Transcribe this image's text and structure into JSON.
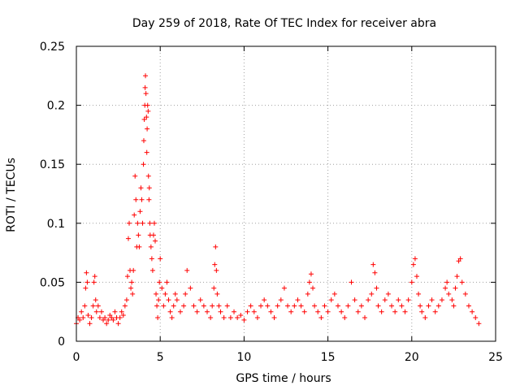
{
  "chart_data": {
    "type": "scatter",
    "title": "Day 259 of 2018, Rate Of TEC Index for receiver abra",
    "xlabel": "GPS time / hours",
    "ylabel": "ROTI / TECUs",
    "xlim": [
      0,
      25
    ],
    "ylim": [
      0,
      0.25
    ],
    "x_ticks": [
      "0",
      "5",
      "10",
      "15",
      "20",
      "25"
    ],
    "y_ticks": [
      "0",
      "0.05",
      "0.1",
      "0.15",
      "0.2",
      "0.25"
    ],
    "grid": true,
    "marker": "plus",
    "color": "#ff0000",
    "series": [
      {
        "x": [
          0.0,
          0.1,
          0.2,
          0.3,
          0.4,
          0.5,
          0.55,
          0.6,
          0.65,
          0.7,
          0.8,
          0.9,
          1.0,
          1.05,
          1.1,
          1.15,
          1.2,
          1.3,
          1.4,
          1.5,
          1.6,
          1.7,
          1.8,
          1.9,
          2.0,
          2.1,
          2.2,
          2.3,
          2.4,
          2.5,
          2.6,
          2.7,
          2.8,
          2.9,
          3.0,
          3.05,
          3.1,
          3.15,
          3.2,
          3.25,
          3.3,
          3.35,
          3.4,
          3.45,
          3.5,
          3.55,
          3.6,
          3.65,
          3.7,
          3.75,
          3.8,
          3.85,
          3.9,
          3.95,
          4.0,
          4.02,
          4.05,
          4.08,
          4.1,
          4.12,
          4.15,
          4.18,
          4.2,
          4.22,
          4.25,
          4.28,
          4.3,
          4.33,
          4.35,
          4.38,
          4.4,
          4.45,
          4.5,
          4.55,
          4.6,
          4.65,
          4.7,
          4.75,
          4.8,
          4.85,
          4.9,
          4.95,
          5.0,
          5.1,
          5.2,
          5.3,
          5.4,
          5.5,
          5.6,
          5.7,
          5.8,
          5.9,
          6.0,
          6.2,
          6.4,
          6.5,
          6.6,
          6.8,
          7.0,
          7.2,
          7.4,
          7.6,
          7.8,
          8.0,
          8.1,
          8.2,
          8.25,
          8.3,
          8.35,
          8.4,
          8.5,
          8.6,
          8.8,
          9.0,
          9.2,
          9.4,
          9.6,
          9.8,
          10.0,
          10.2,
          10.4,
          10.6,
          10.8,
          11.0,
          11.2,
          11.4,
          11.6,
          11.8,
          12.0,
          12.2,
          12.4,
          12.6,
          12.8,
          13.0,
          13.2,
          13.4,
          13.6,
          13.8,
          13.9,
          14.0,
          14.1,
          14.2,
          14.4,
          14.6,
          14.8,
          15.0,
          15.2,
          15.4,
          15.6,
          15.8,
          16.0,
          16.2,
          16.4,
          16.6,
          16.8,
          17.0,
          17.2,
          17.4,
          17.6,
          17.7,
          17.8,
          17.9,
          18.0,
          18.2,
          18.4,
          18.6,
          18.8,
          19.0,
          19.2,
          19.4,
          19.6,
          19.8,
          20.0,
          20.1,
          20.2,
          20.3,
          20.4,
          20.5,
          20.6,
          20.8,
          21.0,
          21.2,
          21.4,
          21.6,
          21.8,
          22.0,
          22.1,
          22.2,
          22.4,
          22.5,
          22.6,
          22.7,
          22.8,
          22.9,
          23.0,
          23.2,
          23.4,
          23.6,
          23.8,
          24.0
        ],
        "y": [
          0.015,
          0.02,
          0.018,
          0.025,
          0.02,
          0.03,
          0.045,
          0.058,
          0.05,
          0.022,
          0.015,
          0.02,
          0.03,
          0.05,
          0.055,
          0.035,
          0.025,
          0.03,
          0.02,
          0.025,
          0.018,
          0.02,
          0.015,
          0.018,
          0.022,
          0.02,
          0.018,
          0.025,
          0.02,
          0.015,
          0.02,
          0.025,
          0.022,
          0.03,
          0.035,
          0.055,
          0.087,
          0.1,
          0.06,
          0.045,
          0.05,
          0.04,
          0.06,
          0.107,
          0.14,
          0.12,
          0.08,
          0.1,
          0.09,
          0.08,
          0.11,
          0.13,
          0.12,
          0.1,
          0.15,
          0.17,
          0.188,
          0.2,
          0.215,
          0.225,
          0.21,
          0.19,
          0.16,
          0.18,
          0.2,
          0.195,
          0.14,
          0.12,
          0.13,
          0.1,
          0.09,
          0.08,
          0.07,
          0.06,
          0.09,
          0.1,
          0.085,
          0.04,
          0.03,
          0.02,
          0.035,
          0.05,
          0.07,
          0.045,
          0.03,
          0.04,
          0.05,
          0.035,
          0.025,
          0.02,
          0.03,
          0.04,
          0.035,
          0.025,
          0.03,
          0.04,
          0.06,
          0.045,
          0.03,
          0.025,
          0.035,
          0.03,
          0.025,
          0.02,
          0.03,
          0.045,
          0.065,
          0.08,
          0.06,
          0.04,
          0.03,
          0.025,
          0.02,
          0.03,
          0.02,
          0.025,
          0.02,
          0.022,
          0.018,
          0.025,
          0.03,
          0.025,
          0.02,
          0.03,
          0.035,
          0.03,
          0.025,
          0.02,
          0.03,
          0.035,
          0.045,
          0.03,
          0.025,
          0.03,
          0.035,
          0.03,
          0.025,
          0.04,
          0.05,
          0.057,
          0.045,
          0.03,
          0.025,
          0.02,
          0.03,
          0.025,
          0.035,
          0.04,
          0.03,
          0.025,
          0.02,
          0.03,
          0.05,
          0.035,
          0.025,
          0.03,
          0.02,
          0.035,
          0.04,
          0.065,
          0.058,
          0.045,
          0.03,
          0.025,
          0.035,
          0.04,
          0.03,
          0.025,
          0.035,
          0.03,
          0.025,
          0.035,
          0.05,
          0.065,
          0.07,
          0.055,
          0.04,
          0.03,
          0.025,
          0.02,
          0.03,
          0.035,
          0.025,
          0.03,
          0.035,
          0.045,
          0.05,
          0.04,
          0.035,
          0.03,
          0.045,
          0.055,
          0.068,
          0.07,
          0.05,
          0.04,
          0.03,
          0.025,
          0.02,
          0.015
        ]
      }
    ]
  }
}
